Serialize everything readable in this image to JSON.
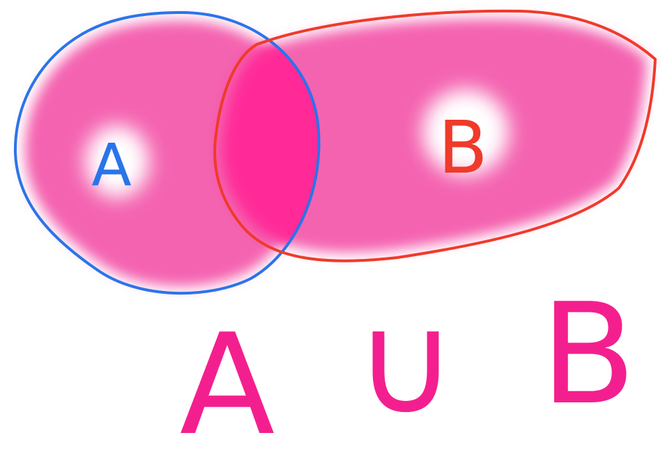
{
  "diagram": {
    "type": "venn-union",
    "sets": [
      {
        "id": "A",
        "label": "A",
        "outline_color": "#2a74ea",
        "label_color": "#2a74ea"
      },
      {
        "id": "B",
        "label": "B",
        "outline_color": "#f03a2a",
        "label_color": "#f03a2a"
      }
    ],
    "fill_color": "#f463b0",
    "overlap_color": "#ff2c98",
    "highlighted_region": "union",
    "expression": {
      "left": "A",
      "operator": "∪",
      "right": "B",
      "color": "#f41f8f"
    }
  }
}
